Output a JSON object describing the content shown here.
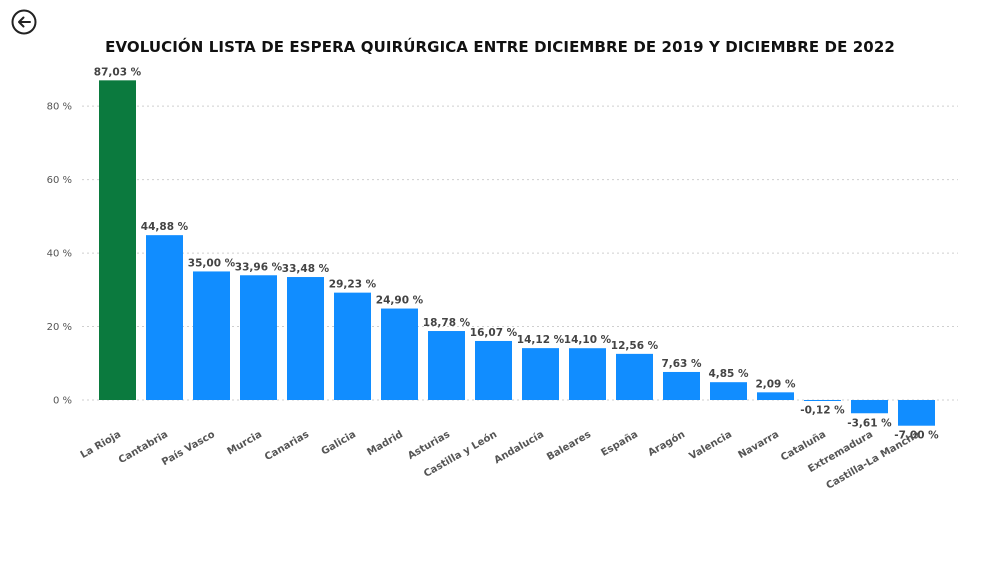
{
  "title": "EVOLUCIÓN LISTA DE ESPERA QUIRÚRGICA ENTRE DICIEMBRE DE 2019 Y DICIEMBRE DE 2022",
  "back_icon": "arrow-left-circle-icon",
  "colors": {
    "highlight": "#0b7a3e",
    "bar": "#118dff"
  },
  "chart_data": {
    "type": "bar",
    "categories": [
      "La Rioja",
      "Cantabria",
      "País Vasco",
      "Murcia",
      "Canarias",
      "Galicia",
      "Madrid",
      "Asturias",
      "Castilla y León",
      "Andalucía",
      "Baleares",
      "España",
      "Aragón",
      "Valencia",
      "Navarra",
      "Cataluña",
      "Extremadura",
      "Castilla-La Mancha"
    ],
    "values": [
      87.03,
      44.88,
      35.0,
      33.96,
      33.48,
      29.23,
      24.9,
      18.78,
      16.07,
      14.12,
      14.1,
      12.56,
      7.63,
      4.85,
      2.09,
      -0.12,
      -3.61,
      -7.0
    ],
    "data_labels": [
      "87,03 %",
      "44,88 %",
      "35,00 %",
      "33,96 %",
      "33,48 %",
      "29,23 %",
      "24,90 %",
      "18,78 %",
      "16,07 %",
      "14,12 %",
      "14,10 %",
      "12,56 %",
      "7,63 %",
      "4,85 %",
      "2,09 %",
      "-0,12 %",
      "-3,61 %",
      "-7,00 %"
    ],
    "highlight_category": "La Rioja",
    "yticks": [
      0,
      20,
      40,
      60,
      80
    ],
    "ytick_labels": [
      "0 %",
      "20 %",
      "40 %",
      "60 %",
      "80 %"
    ],
    "ylim": [
      -10,
      90
    ],
    "grid": true
  }
}
